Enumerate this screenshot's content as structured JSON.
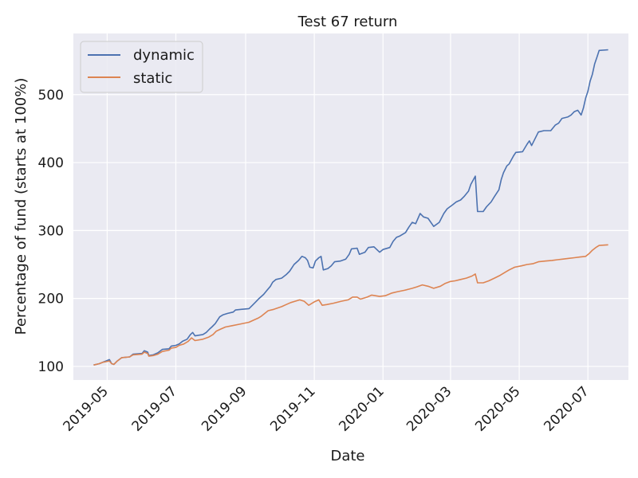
{
  "chart_data": {
    "type": "line",
    "title": "Test 67 return",
    "xlabel": "Date",
    "ylabel": "Percentage of fund (starts at 100%)",
    "xlim": [
      "2019-04-01",
      "2020-08-06"
    ],
    "ylim": [
      80,
      590
    ],
    "x_ticks": [
      "2019-05-01",
      "2019-07-01",
      "2019-09-01",
      "2019-11-01",
      "2020-01-01",
      "2020-03-01",
      "2020-05-01",
      "2020-07-01"
    ],
    "x_tick_labels": [
      "2019-05",
      "2019-07",
      "2019-09",
      "2019-11",
      "2020-01",
      "2020-03",
      "2020-05",
      "2020-07"
    ],
    "y_ticks": [
      100,
      200,
      300,
      400,
      500
    ],
    "y_tick_labels": [
      "100",
      "200",
      "300",
      "400",
      "500"
    ],
    "grid": true,
    "background": "#eaeaf2",
    "legend_position": "top-left",
    "series": [
      {
        "name": "dynamic",
        "color": "#4c72b0",
        "points": [
          [
            "2019-04-19",
            102
          ],
          [
            "2019-04-24",
            104
          ],
          [
            "2019-04-27",
            106
          ],
          [
            "2019-04-30",
            108
          ],
          [
            "2019-05-03",
            110
          ],
          [
            "2019-05-05",
            104
          ],
          [
            "2019-05-07",
            103
          ],
          [
            "2019-05-10",
            108
          ],
          [
            "2019-05-14",
            113
          ],
          [
            "2019-05-21",
            114
          ],
          [
            "2019-05-24",
            118
          ],
          [
            "2019-06-01",
            119
          ],
          [
            "2019-06-03",
            123
          ],
          [
            "2019-06-06",
            121
          ],
          [
            "2019-06-07",
            116
          ],
          [
            "2019-06-11",
            117
          ],
          [
            "2019-06-15",
            120
          ],
          [
            "2019-06-19",
            125
          ],
          [
            "2019-06-25",
            126
          ],
          [
            "2019-06-27",
            130
          ],
          [
            "2019-07-01",
            131
          ],
          [
            "2019-07-04",
            133
          ],
          [
            "2019-07-07",
            137
          ],
          [
            "2019-07-11",
            140
          ],
          [
            "2019-07-14",
            147
          ],
          [
            "2019-07-16",
            150
          ],
          [
            "2019-07-18",
            145
          ],
          [
            "2019-07-25",
            147
          ],
          [
            "2019-07-28",
            150
          ],
          [
            "2019-07-31",
            155
          ],
          [
            "2019-08-02",
            158
          ],
          [
            "2019-08-05",
            163
          ],
          [
            "2019-08-07",
            168
          ],
          [
            "2019-08-09",
            173
          ],
          [
            "2019-08-12",
            176
          ],
          [
            "2019-08-16",
            178
          ],
          [
            "2019-08-21",
            180
          ],
          [
            "2019-08-23",
            183
          ],
          [
            "2019-08-28",
            184
          ],
          [
            "2019-09-04",
            185
          ],
          [
            "2019-09-07",
            190
          ],
          [
            "2019-09-10",
            195
          ],
          [
            "2019-09-13",
            200
          ],
          [
            "2019-09-17",
            206
          ],
          [
            "2019-09-20",
            212
          ],
          [
            "2019-09-23",
            218
          ],
          [
            "2019-09-25",
            224
          ],
          [
            "2019-09-28",
            228
          ],
          [
            "2019-10-03",
            230
          ],
          [
            "2019-10-07",
            235
          ],
          [
            "2019-10-10",
            240
          ],
          [
            "2019-10-12",
            245
          ],
          [
            "2019-10-14",
            250
          ],
          [
            "2019-10-18",
            256
          ],
          [
            "2019-10-21",
            262
          ],
          [
            "2019-10-24",
            260
          ],
          [
            "2019-10-26",
            256
          ],
          [
            "2019-10-28",
            246
          ],
          [
            "2019-10-31",
            245
          ],
          [
            "2019-11-02",
            255
          ],
          [
            "2019-11-05",
            260
          ],
          [
            "2019-11-07",
            262
          ],
          [
            "2019-11-09",
            242
          ],
          [
            "2019-11-13",
            244
          ],
          [
            "2019-11-16",
            248
          ],
          [
            "2019-11-19",
            254
          ],
          [
            "2019-11-24",
            255
          ],
          [
            "2019-11-29",
            258
          ],
          [
            "2019-12-02",
            265
          ],
          [
            "2019-12-04",
            273
          ],
          [
            "2019-12-09",
            274
          ],
          [
            "2019-12-11",
            265
          ],
          [
            "2019-12-16",
            268
          ],
          [
            "2019-12-19",
            275
          ],
          [
            "2019-12-24",
            276
          ],
          [
            "2019-12-29",
            268
          ],
          [
            "2020-01-01",
            272
          ],
          [
            "2020-01-07",
            275
          ],
          [
            "2020-01-10",
            284
          ],
          [
            "2020-01-13",
            290
          ],
          [
            "2020-01-16",
            292
          ],
          [
            "2020-01-21",
            297
          ],
          [
            "2020-01-24",
            305
          ],
          [
            "2020-01-27",
            312
          ],
          [
            "2020-01-30",
            310
          ],
          [
            "2020-02-03",
            325
          ],
          [
            "2020-02-06",
            320
          ],
          [
            "2020-02-10",
            318
          ],
          [
            "2020-02-15",
            306
          ],
          [
            "2020-02-20",
            312
          ],
          [
            "2020-02-24",
            325
          ],
          [
            "2020-02-27",
            332
          ],
          [
            "2020-03-03",
            338
          ],
          [
            "2020-03-06",
            342
          ],
          [
            "2020-03-10",
            345
          ],
          [
            "2020-03-13",
            350
          ],
          [
            "2020-03-17",
            358
          ],
          [
            "2020-03-19",
            368
          ],
          [
            "2020-03-23",
            380
          ],
          [
            "2020-03-25",
            328
          ],
          [
            "2020-03-30",
            328
          ],
          [
            "2020-04-02",
            335
          ],
          [
            "2020-04-06",
            342
          ],
          [
            "2020-04-09",
            350
          ],
          [
            "2020-04-13",
            360
          ],
          [
            "2020-04-15",
            375
          ],
          [
            "2020-04-17",
            385
          ],
          [
            "2020-04-20",
            395
          ],
          [
            "2020-04-22",
            398
          ],
          [
            "2020-04-26",
            410
          ],
          [
            "2020-04-28",
            415
          ],
          [
            "2020-05-04",
            416
          ],
          [
            "2020-05-08",
            427
          ],
          [
            "2020-05-10",
            432
          ],
          [
            "2020-05-12",
            425
          ],
          [
            "2020-05-18",
            445
          ],
          [
            "2020-05-23",
            447
          ],
          [
            "2020-05-29",
            447
          ],
          [
            "2020-06-02",
            455
          ],
          [
            "2020-06-05",
            458
          ],
          [
            "2020-06-08",
            465
          ],
          [
            "2020-06-13",
            467
          ],
          [
            "2020-06-16",
            470
          ],
          [
            "2020-06-19",
            475
          ],
          [
            "2020-06-22",
            477
          ],
          [
            "2020-06-25",
            470
          ],
          [
            "2020-06-27",
            480
          ],
          [
            "2020-06-29",
            495
          ],
          [
            "2020-07-01",
            505
          ],
          [
            "2020-07-03",
            520
          ],
          [
            "2020-07-05",
            530
          ],
          [
            "2020-07-07",
            545
          ],
          [
            "2020-07-09",
            555
          ],
          [
            "2020-07-11",
            565
          ],
          [
            "2020-07-19",
            566
          ]
        ]
      },
      {
        "name": "static",
        "color": "#dd8452",
        "points": [
          [
            "2019-04-19",
            102
          ],
          [
            "2019-04-24",
            104
          ],
          [
            "2019-04-27",
            106
          ],
          [
            "2019-04-30",
            107
          ],
          [
            "2019-05-03",
            108
          ],
          [
            "2019-05-05",
            104
          ],
          [
            "2019-05-07",
            103
          ],
          [
            "2019-05-10",
            108
          ],
          [
            "2019-05-14",
            113
          ],
          [
            "2019-05-21",
            114
          ],
          [
            "2019-05-24",
            117
          ],
          [
            "2019-06-01",
            118
          ],
          [
            "2019-06-03",
            121
          ],
          [
            "2019-06-06",
            119
          ],
          [
            "2019-06-07",
            115
          ],
          [
            "2019-06-11",
            116
          ],
          [
            "2019-06-15",
            118
          ],
          [
            "2019-06-19",
            122
          ],
          [
            "2019-06-25",
            124
          ],
          [
            "2019-06-27",
            127
          ],
          [
            "2019-07-01",
            128
          ],
          [
            "2019-07-04",
            131
          ],
          [
            "2019-07-08",
            133
          ],
          [
            "2019-07-12",
            137
          ],
          [
            "2019-07-15",
            142
          ],
          [
            "2019-07-18",
            138
          ],
          [
            "2019-07-25",
            140
          ],
          [
            "2019-07-30",
            143
          ],
          [
            "2019-08-03",
            147
          ],
          [
            "2019-08-06",
            152
          ],
          [
            "2019-08-10",
            155
          ],
          [
            "2019-08-14",
            158
          ],
          [
            "2019-08-20",
            160
          ],
          [
            "2019-08-26",
            162
          ],
          [
            "2019-09-04",
            165
          ],
          [
            "2019-09-08",
            168
          ],
          [
            "2019-09-12",
            171
          ],
          [
            "2019-09-15",
            174
          ],
          [
            "2019-09-18",
            178
          ],
          [
            "2019-09-21",
            182
          ],
          [
            "2019-09-26",
            184
          ],
          [
            "2019-10-03",
            188
          ],
          [
            "2019-10-07",
            191
          ],
          [
            "2019-10-11",
            194
          ],
          [
            "2019-10-15",
            196
          ],
          [
            "2019-10-19",
            198
          ],
          [
            "2019-10-23",
            196
          ],
          [
            "2019-10-27",
            190
          ],
          [
            "2019-11-01",
            195
          ],
          [
            "2019-11-05",
            198
          ],
          [
            "2019-11-08",
            190
          ],
          [
            "2019-11-12",
            191
          ],
          [
            "2019-11-18",
            193
          ],
          [
            "2019-11-25",
            196
          ],
          [
            "2019-12-01",
            198
          ],
          [
            "2019-12-05",
            202
          ],
          [
            "2019-12-09",
            202
          ],
          [
            "2019-12-12",
            199
          ],
          [
            "2019-12-18",
            202
          ],
          [
            "2019-12-22",
            205
          ],
          [
            "2019-12-29",
            203
          ],
          [
            "2020-01-03",
            204
          ],
          [
            "2020-01-09",
            208
          ],
          [
            "2020-01-14",
            210
          ],
          [
            "2020-01-20",
            212
          ],
          [
            "2020-01-27",
            215
          ],
          [
            "2020-01-31",
            217
          ],
          [
            "2020-02-05",
            220
          ],
          [
            "2020-02-10",
            218
          ],
          [
            "2020-02-15",
            215
          ],
          [
            "2020-02-21",
            218
          ],
          [
            "2020-02-25",
            222
          ],
          [
            "2020-03-01",
            225
          ],
          [
            "2020-03-05",
            226
          ],
          [
            "2020-03-10",
            228
          ],
          [
            "2020-03-15",
            230
          ],
          [
            "2020-03-20",
            233
          ],
          [
            "2020-03-23",
            236
          ],
          [
            "2020-03-25",
            223
          ],
          [
            "2020-03-30",
            223
          ],
          [
            "2020-04-04",
            226
          ],
          [
            "2020-04-09",
            230
          ],
          [
            "2020-04-14",
            234
          ],
          [
            "2020-04-18",
            238
          ],
          [
            "2020-04-22",
            242
          ],
          [
            "2020-04-27",
            246
          ],
          [
            "2020-05-03",
            248
          ],
          [
            "2020-05-08",
            250
          ],
          [
            "2020-05-13",
            251
          ],
          [
            "2020-05-18",
            254
          ],
          [
            "2020-05-24",
            255
          ],
          [
            "2020-05-30",
            256
          ],
          [
            "2020-06-04",
            257
          ],
          [
            "2020-06-09",
            258
          ],
          [
            "2020-06-14",
            259
          ],
          [
            "2020-06-19",
            260
          ],
          [
            "2020-06-24",
            261
          ],
          [
            "2020-06-29",
            262
          ],
          [
            "2020-07-02",
            266
          ],
          [
            "2020-07-05",
            271
          ],
          [
            "2020-07-08",
            275
          ],
          [
            "2020-07-11",
            278
          ],
          [
            "2020-07-19",
            279
          ]
        ]
      }
    ]
  }
}
